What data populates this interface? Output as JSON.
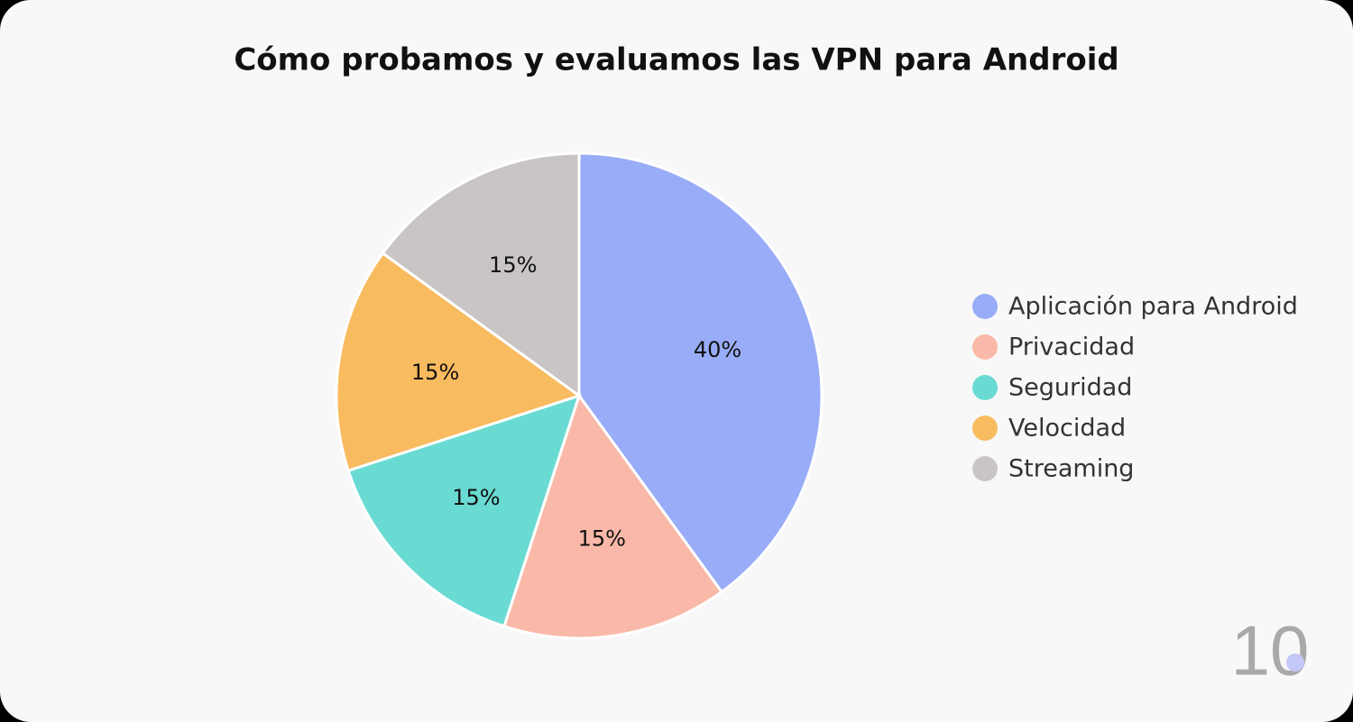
{
  "chart_data": {
    "type": "pie",
    "title": "Cómo probamos y evaluamos las VPN para Android",
    "categories": [
      "Aplicación para Android",
      "Privacidad",
      "Seguridad",
      "Velocidad",
      "Streaming"
    ],
    "values": [
      40,
      15,
      15,
      15,
      15
    ],
    "value_labels": [
      "40%",
      "15%",
      "15%",
      "15%",
      "15%"
    ],
    "colors": [
      "#99acf7",
      "#fab9a8",
      "#6adbd3",
      "#f9bb5f",
      "#c9c5c4"
    ],
    "legend": "right"
  },
  "watermark": "10"
}
